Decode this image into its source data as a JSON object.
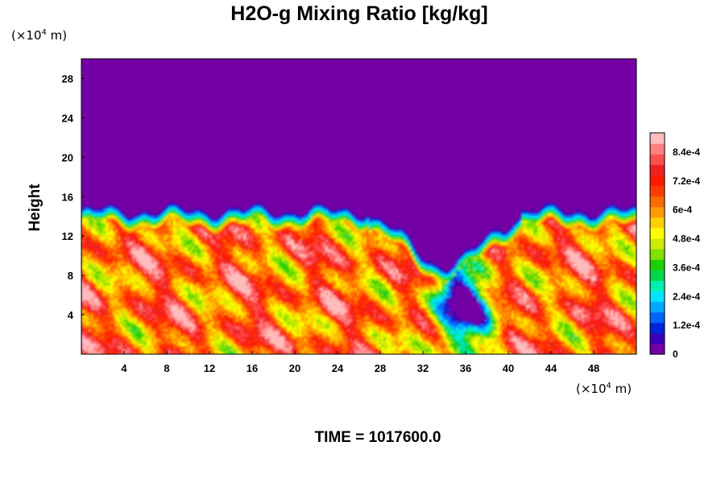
{
  "chart_data": {
    "type": "heatmap",
    "title": "H2O-g Mixing Ratio [kg/kg]",
    "ylabel": "Height",
    "xunit": "(×10",
    "yunit": "(×10",
    "unit_exp": "4",
    "unit_suffix": "m)",
    "xlim": [
      0,
      52
    ],
    "ylim": [
      0,
      30
    ],
    "x_ticks": [
      "4",
      "8",
      "12",
      "16",
      "20",
      "24",
      "28",
      "32",
      "36",
      "40",
      "44",
      "48"
    ],
    "y_ticks": [
      "4",
      "8",
      "12",
      "16",
      "20",
      "24",
      "28"
    ],
    "colorbar": {
      "min": 0,
      "max": 0.00092,
      "labels": [
        "0",
        "1.2e-4",
        "2.4e-4",
        "3.6e-4",
        "4.8e-4",
        "6e-4",
        "7.2e-4",
        "8.4e-4"
      ],
      "colors": [
        "#7300a5",
        "#3a00b8",
        "#0022d8",
        "#0064ff",
        "#00a8ff",
        "#00e4ff",
        "#00f0b0",
        "#00d84a",
        "#1ad000",
        "#80e000",
        "#cdeb00",
        "#ffff00",
        "#ffd000",
        "#ff9a00",
        "#ff6a00",
        "#ff3c00",
        "#ff1c00",
        "#f02020",
        "#ff5050",
        "#ff8080",
        "#ffbcbc"
      ]
    },
    "field_summary": {
      "upper_layer_value": 0,
      "moist_layer_top_height": 13.5,
      "dry_intrusion_x_range": [
        28,
        40
      ]
    }
  },
  "footer": {
    "time_label": "TIME = 1017600.0"
  }
}
